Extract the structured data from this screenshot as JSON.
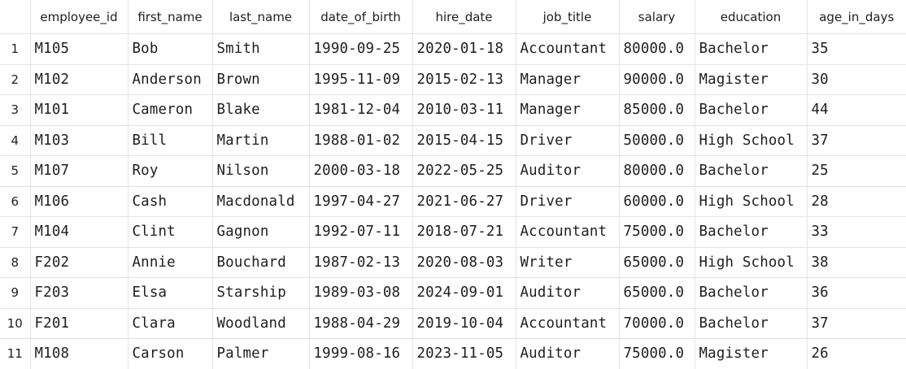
{
  "columns": [
    "employee_id",
    "first_name",
    "last_name",
    "date_of_birth",
    "hire_date",
    "job_title",
    "salary",
    "education",
    "age_in_days"
  ],
  "rows": [
    {
      "num": "1",
      "cells": [
        "M105",
        "Bob",
        "Smith",
        "1990-09-25",
        "2020-01-18",
        "Accountant",
        "80000.0",
        "Bachelor",
        "35"
      ]
    },
    {
      "num": "2",
      "cells": [
        "M102",
        "Anderson",
        "Brown",
        "1995-11-09",
        "2015-02-13",
        "Manager",
        "90000.0",
        "Magister",
        "30"
      ]
    },
    {
      "num": "3",
      "cells": [
        "M101",
        "Cameron",
        "Blake",
        "1981-12-04",
        "2010-03-11",
        "Manager",
        "85000.0",
        "Bachelor",
        "44"
      ]
    },
    {
      "num": "4",
      "cells": [
        "M103",
        "Bill",
        "Martin",
        "1988-01-02",
        "2015-04-15",
        "Driver",
        "50000.0",
        "High School",
        "37"
      ]
    },
    {
      "num": "5",
      "cells": [
        "M107",
        "Roy",
        "Nilson",
        "2000-03-18",
        "2022-05-25",
        "Auditor",
        "80000.0",
        "Bachelor",
        "25"
      ]
    },
    {
      "num": "6",
      "cells": [
        "M106",
        "Cash",
        "Macdonald",
        "1997-04-27",
        "2021-06-27",
        "Driver",
        "60000.0",
        "High School",
        "28"
      ]
    },
    {
      "num": "7",
      "cells": [
        "M104",
        "Clint",
        "Gagnon",
        "1992-07-11",
        "2018-07-21",
        "Accountant",
        "75000.0",
        "Bachelor",
        "33"
      ]
    },
    {
      "num": "8",
      "cells": [
        "F202",
        "Annie",
        "Bouchard",
        "1987-02-13",
        "2020-08-03",
        "Writer",
        "65000.0",
        "High School",
        "38"
      ]
    },
    {
      "num": "9",
      "cells": [
        "F203",
        "Elsa",
        "Starship",
        "1989-03-08",
        "2024-09-01",
        "Auditor",
        "65000.0",
        "Bachelor",
        "36"
      ]
    },
    {
      "num": "10",
      "cells": [
        "F201",
        "Clara",
        "Woodland",
        "1988-04-29",
        "2019-10-04",
        "Accountant",
        "70000.0",
        "Bachelor",
        "37"
      ]
    },
    {
      "num": "11",
      "cells": [
        "M108",
        "Carson",
        "Palmer",
        "1999-08-16",
        "2023-11-05",
        "Auditor",
        "75000.0",
        "Magister",
        "26"
      ]
    }
  ]
}
